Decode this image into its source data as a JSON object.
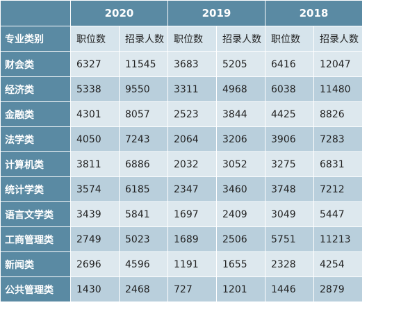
{
  "table": {
    "years": [
      "2020",
      "2019",
      "2018"
    ],
    "category_header": "专业类别",
    "sub_headers": [
      "职位数",
      "招录人数",
      "职位数",
      "招录人数",
      "职位数",
      "招录人数"
    ],
    "rows": [
      {
        "category": "财会类",
        "values": [
          "6327",
          "11545",
          "3683",
          "5205",
          "6416",
          "12047"
        ]
      },
      {
        "category": "经济类",
        "values": [
          "5338",
          "9550",
          "3311",
          "4968",
          "6038",
          "11480"
        ]
      },
      {
        "category": "金融类",
        "values": [
          "4301",
          "8057",
          "2523",
          "3844",
          "4425",
          "8826"
        ]
      },
      {
        "category": "法学类",
        "values": [
          "4050",
          "7243",
          "2064",
          "3206",
          "3906",
          "7283"
        ]
      },
      {
        "category": "计算机类",
        "values": [
          "3811",
          "6886",
          "2032",
          "3052",
          "3275",
          "6831"
        ]
      },
      {
        "category": "统计学类",
        "values": [
          "3574",
          "6185",
          "2347",
          "3460",
          "3748",
          "7212"
        ]
      },
      {
        "category": "语言文学类",
        "values": [
          "3439",
          "5841",
          "1697",
          "2409",
          "3049",
          "5447"
        ]
      },
      {
        "category": "工商管理类",
        "values": [
          "2749",
          "5023",
          "1689",
          "2506",
          "5751",
          "11213"
        ]
      },
      {
        "category": "新闻类",
        "values": [
          "2696",
          "4596",
          "1191",
          "1655",
          "2328",
          "4254"
        ]
      },
      {
        "category": "公共管理类",
        "values": [
          "1430",
          "2468",
          "727",
          "1201",
          "1446",
          "2879"
        ]
      }
    ]
  },
  "colors": {
    "header_blue": "#5a8aa3",
    "row_light": "#dde8ee",
    "row_dark": "#b9cfdc"
  }
}
